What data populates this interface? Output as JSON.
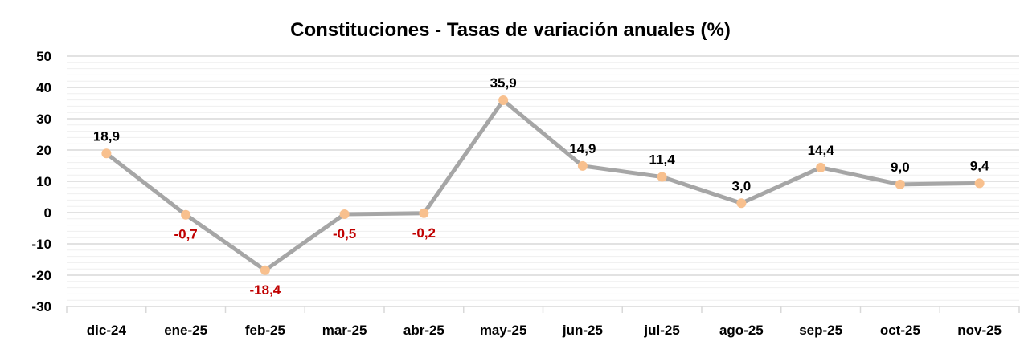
{
  "chart_data": {
    "type": "line",
    "title": "Constituciones - Tasas de variación anuales (%)",
    "categories": [
      "dic-24",
      "ene-25",
      "feb-25",
      "mar-25",
      "abr-25",
      "may-25",
      "jun-25",
      "jul-25",
      "ago-25",
      "sep-25",
      "oct-25",
      "nov-25"
    ],
    "series": [
      {
        "values": [
          18.9,
          -0.7,
          -18.4,
          -0.5,
          -0.2,
          35.9,
          14.9,
          11.4,
          3.0,
          14.4,
          9.0,
          9.4
        ]
      }
    ],
    "data_labels": [
      "18,9",
      "-0,7",
      "-18,4",
      "-0,5",
      "-0,2",
      "35,9",
      "14,9",
      "11,4",
      "3,0",
      "14,4",
      "9,0",
      "9,4"
    ],
    "y_ticks": [
      "50",
      "40",
      "30",
      "20",
      "10",
      "0",
      "-10",
      "-20",
      "-30"
    ],
    "ylim": [
      -30,
      50
    ],
    "y_major_step": 10,
    "y_minor_step": 2,
    "grid": true,
    "legend": "none",
    "xlabel": "",
    "ylabel": "",
    "colors": {
      "line": "#a6a6a6",
      "marker": "#f8c08e",
      "positive_label": "#000000",
      "negative_label": "#c00000",
      "major_grid": "#d9d9d9",
      "minor_grid": "#efefef"
    }
  }
}
